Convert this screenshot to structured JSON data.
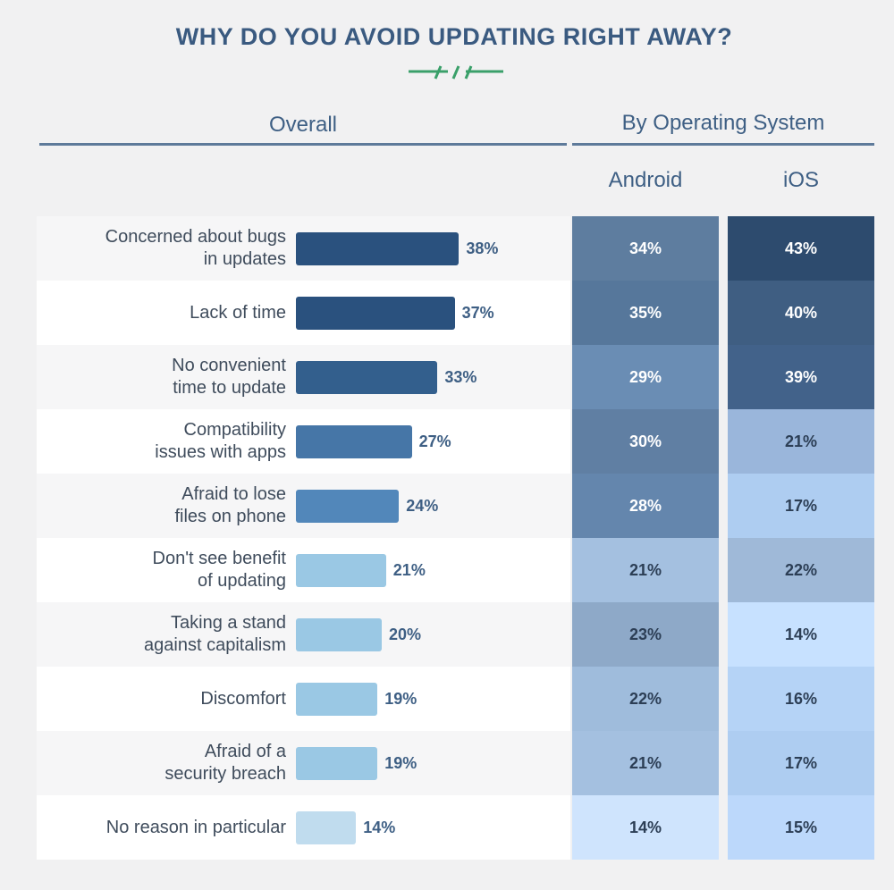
{
  "chart_data": {
    "type": "bar",
    "title": "WHY DO YOU AVOID UPDATING RIGHT AWAY?",
    "overall_header": "Overall",
    "os_header": "By Operating System",
    "os_columns": [
      "Android",
      "iOS"
    ],
    "categories": [
      "Concerned about bugs in updates",
      "Lack of time",
      "No convenient time to update",
      "Compatibility issues with apps",
      "Afraid to lose files on phone",
      "Don't see benefit of updating",
      "Taking a stand against capitalism",
      "Discomfort",
      "Afraid of a security breach",
      "No reason in particular"
    ],
    "category_lines": [
      [
        "Concerned about bugs",
        "in updates"
      ],
      [
        "Lack of time"
      ],
      [
        "No convenient",
        "time to update"
      ],
      [
        "Compatibility",
        "issues with apps"
      ],
      [
        "Afraid to lose",
        "files on phone"
      ],
      [
        "Don't see benefit",
        "of updating"
      ],
      [
        "Taking a stand",
        "against capitalism"
      ],
      [
        "Discomfort"
      ],
      [
        "Afraid of a",
        "security breach"
      ],
      [
        "No reason in particular"
      ]
    ],
    "series": [
      {
        "name": "Overall",
        "values": [
          38,
          37,
          33,
          27,
          24,
          21,
          20,
          19,
          19,
          14
        ]
      },
      {
        "name": "Android",
        "values": [
          34,
          35,
          29,
          30,
          28,
          21,
          23,
          22,
          21,
          14
        ]
      },
      {
        "name": "iOS",
        "values": [
          43,
          40,
          39,
          21,
          17,
          22,
          14,
          16,
          17,
          15
        ]
      }
    ],
    "value_suffix": "%",
    "overall_bar_colors": [
      "#2a517e",
      "#2a517e",
      "#335f8d",
      "#4676a7",
      "#5287ba",
      "#9ac8e4",
      "#9ac8e4",
      "#9ac8e4",
      "#9ac8e4",
      "#c0dcee"
    ],
    "heat_colors": {
      "android": [
        "#5e7d9f",
        "#56779b",
        "#6a8db4",
        "#607fa3",
        "#6486ad",
        "#a4c0e0",
        "#8ea9c8",
        "#9fbcdc",
        "#a4c0e0",
        "#cfe4fd"
      ],
      "ios": [
        "#2d4b6e",
        "#3f5e82",
        "#42628a",
        "#9ab6db",
        "#aecdf1",
        "#9fb9d8",
        "#c7e1ff",
        "#b5d3f6",
        "#aecdf1",
        "#bcd8fb"
      ]
    }
  }
}
